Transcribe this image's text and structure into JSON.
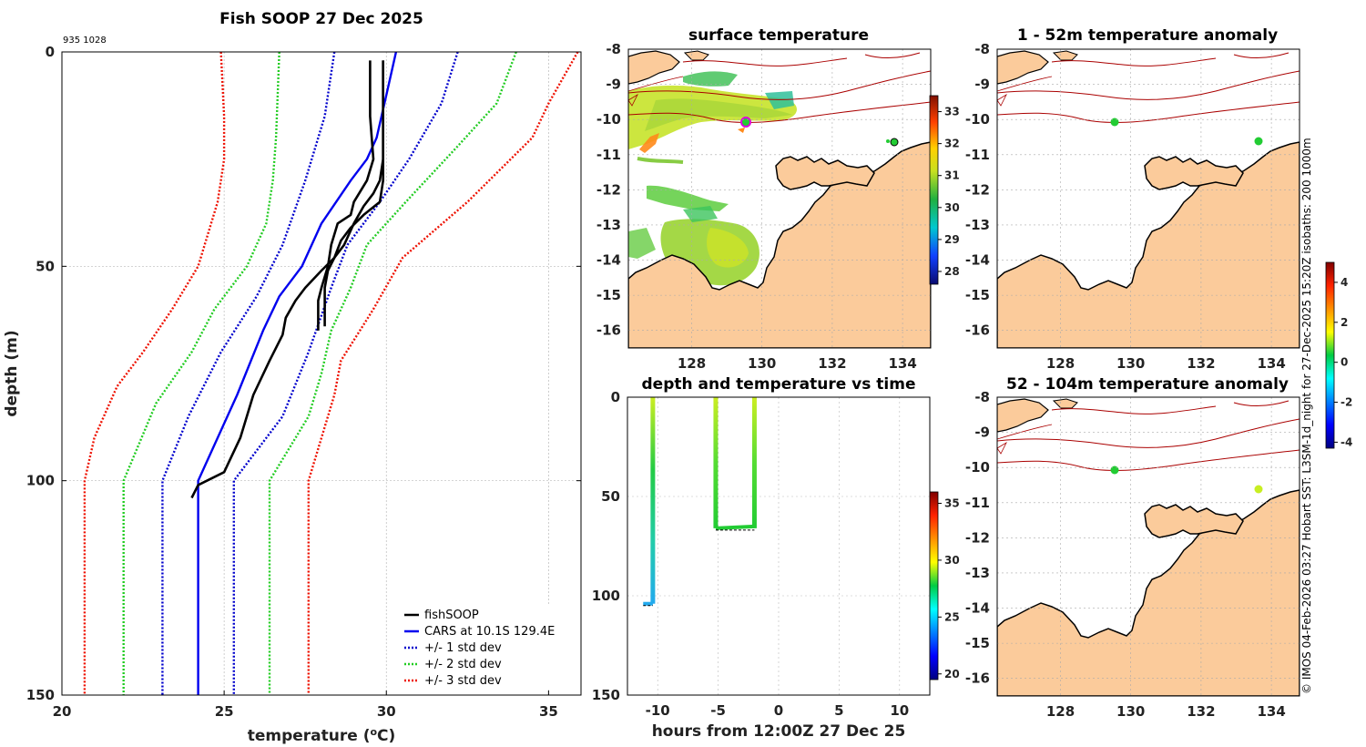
{
  "chart_data": [
    {
      "type": "line",
      "title": "Fish SOOP 27 Dec 2025",
      "corner_text": "935 1028",
      "xlabel": "temperature (°C)",
      "xlabel_parts": {
        "pre": "temperature (",
        "sup": "o",
        "post": "C)"
      },
      "ylabel": "depth (m)",
      "xlim": [
        20,
        36
      ],
      "ylim": [
        150,
        0
      ],
      "xticks": [
        "20",
        "25",
        "30",
        "35"
      ],
      "yticks": [
        "0",
        "50",
        "100",
        "150"
      ],
      "legend": [
        "fishSOOP",
        "CARS at 10.1S 129.4E",
        "+/- 1 std dev",
        "+/- 2 std dev",
        "+/- 3 std dev"
      ],
      "colors": {
        "fishsoop": "#000000",
        "cars": "#0000ee",
        "sd1": "#0000cc",
        "sd2": "#22cc22",
        "sd3": "#ee1100"
      },
      "series": [
        {
          "name": "fishSOOP cast 1",
          "depth": [
            2,
            15,
            25,
            30,
            35,
            38,
            40,
            45,
            50,
            55,
            58,
            62,
            65
          ],
          "temp": [
            29.5,
            29.5,
            29.6,
            29.4,
            29.0,
            28.9,
            28.5,
            28.3,
            28.2,
            28.0,
            27.9,
            27.9,
            27.9
          ]
        },
        {
          "name": "fishSOOP cast 2",
          "depth": [
            2,
            15,
            25,
            30,
            33,
            36,
            40,
            45,
            48,
            51,
            55,
            60,
            64
          ],
          "temp": [
            29.9,
            29.9,
            29.9,
            29.8,
            29.6,
            29.3,
            29.0,
            28.7,
            28.4,
            28.2,
            28.1,
            28.1,
            28.1
          ]
        },
        {
          "name": "fishSOOP cast 3",
          "depth": [
            2,
            20,
            30,
            35,
            38,
            41,
            44,
            48,
            51,
            55,
            58,
            62,
            66,
            72,
            80,
            90,
            98,
            101,
            104
          ],
          "temp": [
            29.9,
            29.9,
            29.9,
            29.8,
            29.3,
            28.9,
            28.6,
            28.4,
            28.0,
            27.5,
            27.2,
            26.9,
            26.8,
            26.4,
            25.9,
            25.5,
            25.0,
            24.2,
            24.0
          ]
        },
        {
          "name": "CARS",
          "depth": [
            0,
            10,
            20,
            25,
            30,
            40,
            50,
            57,
            65,
            80,
            100,
            150
          ],
          "temp": [
            30.3,
            30.0,
            29.7,
            29.4,
            28.9,
            28.0,
            27.4,
            26.7,
            26.2,
            25.4,
            24.2,
            24.2
          ]
        },
        {
          "name": "-1 std dev",
          "depth": [
            0,
            15,
            30,
            45,
            57,
            70,
            85,
            100,
            150
          ],
          "temp": [
            28.4,
            28.1,
            27.5,
            26.8,
            26.0,
            24.9,
            23.9,
            23.1,
            23.1
          ]
        },
        {
          "name": "+1 std dev",
          "depth": [
            0,
            12,
            25,
            35,
            45,
            55,
            70,
            85,
            100,
            150
          ],
          "temp": [
            32.2,
            31.7,
            30.7,
            29.8,
            28.8,
            28.3,
            27.6,
            26.8,
            25.3,
            25.3
          ]
        },
        {
          "name": "-2 std dev",
          "depth": [
            0,
            20,
            30,
            40,
            50,
            60,
            70,
            82,
            100,
            150
          ],
          "temp": [
            26.7,
            26.6,
            26.5,
            26.3,
            25.7,
            24.7,
            24.0,
            22.9,
            21.9,
            21.9
          ]
        },
        {
          "name": "+2 std dev",
          "depth": [
            0,
            12,
            22,
            35,
            45,
            55,
            65,
            75,
            85,
            100,
            150
          ],
          "temp": [
            34.0,
            33.4,
            32.2,
            30.6,
            29.4,
            28.9,
            28.3,
            28.0,
            27.6,
            26.4,
            26.4
          ]
        },
        {
          "name": "-3 std dev",
          "depth": [
            0,
            15,
            25,
            35,
            50,
            60,
            70,
            78,
            90,
            100,
            150
          ],
          "temp": [
            24.9,
            25.0,
            25.0,
            24.8,
            24.2,
            23.4,
            22.5,
            21.7,
            21.0,
            20.7,
            20.7
          ]
        },
        {
          "name": "+3 std dev",
          "depth": [
            0,
            12,
            20,
            35,
            48,
            60,
            72,
            80,
            90,
            100,
            150
          ],
          "temp": [
            35.9,
            35.0,
            34.5,
            32.5,
            30.5,
            29.6,
            28.6,
            28.4,
            28.0,
            27.6,
            27.6
          ]
        }
      ]
    },
    {
      "type": "heatmap",
      "title": "surface temperature",
      "xlim": [
        126.2,
        134.8
      ],
      "ylim": [
        -16.5,
        -8
      ],
      "xticks": [
        "128",
        "130",
        "132",
        "134"
      ],
      "yticks": [
        "-8",
        "-9",
        "-10",
        "-11",
        "-12",
        "-13",
        "-14",
        "-15",
        "-16"
      ],
      "colorbar_ticks": [
        "33",
        "32",
        "31",
        "30",
        "29",
        "28"
      ],
      "colorbar_range": [
        27.6,
        33.5
      ],
      "station_points": [
        {
          "lon": 129.4,
          "lat": -10.1
        },
        {
          "lon": 133.7,
          "lat": -10.6
        }
      ]
    },
    {
      "type": "scatter",
      "title": "depth and temperature vs time",
      "xlabel": "hours from 12:00Z 27 Dec 25",
      "xlim": [
        -12.5,
        12.5
      ],
      "ylim": [
        150,
        0
      ],
      "xticks": [
        "-10",
        "-5",
        "0",
        "5",
        "10"
      ],
      "yticks": [
        "0",
        "50",
        "100",
        "150"
      ],
      "colorbar_ticks": [
        "35",
        "30",
        "25",
        "20"
      ],
      "colorbar_range": [
        19.5,
        36
      ],
      "casts": [
        {
          "time_down": -10.4,
          "time_bottom_end": -11.2,
          "max_depth": 104
        },
        {
          "time_down": -5.2,
          "time_up": -2.0,
          "max_depth": 66
        }
      ]
    },
    {
      "type": "heatmap",
      "title": "1 - 52m temperature anomaly",
      "xlim": [
        126.2,
        134.8
      ],
      "ylim": [
        -16.5,
        -8
      ],
      "xticks": [
        "128",
        "130",
        "132",
        "134"
      ],
      "yticks": [
        "-8",
        "-9",
        "-10",
        "-11",
        "-12",
        "-13",
        "-14",
        "-15",
        "-16"
      ],
      "station_points": [
        {
          "lon": 129.4,
          "lat": -10.1,
          "anomaly": 0.2
        },
        {
          "lon": 133.6,
          "lat": -10.6,
          "anomaly": 0.3
        }
      ]
    },
    {
      "type": "heatmap",
      "title": "52 - 104m temperature anomaly",
      "xlim": [
        126.2,
        134.8
      ],
      "ylim": [
        -16.5,
        -8
      ],
      "xticks": [
        "128",
        "130",
        "132",
        "134"
      ],
      "yticks": [
        "-8",
        "-9",
        "-10",
        "-11",
        "-12",
        "-13",
        "-14",
        "-15",
        "-16"
      ],
      "station_points": [
        {
          "lon": 129.4,
          "lat": -10.1,
          "anomaly": 0.3
        },
        {
          "lon": 133.6,
          "lat": -10.6,
          "anomaly": 1.5
        }
      ]
    }
  ],
  "anomaly_colorbar": {
    "ticks": [
      "4",
      "2",
      "0",
      "-2",
      "-4"
    ],
    "range": [
      -4.3,
      5
    ]
  },
  "credit": "© IMOS 04-Feb-2026 03:27 Hobart SST: L3SM-1d_night for 27-Dec-2025 15:20Z isobaths: 200  1000m",
  "colors": {
    "land": "#fbcb9b",
    "coast": "#000000",
    "isobath": "#aa0000",
    "grid": "#b8b8b8"
  }
}
